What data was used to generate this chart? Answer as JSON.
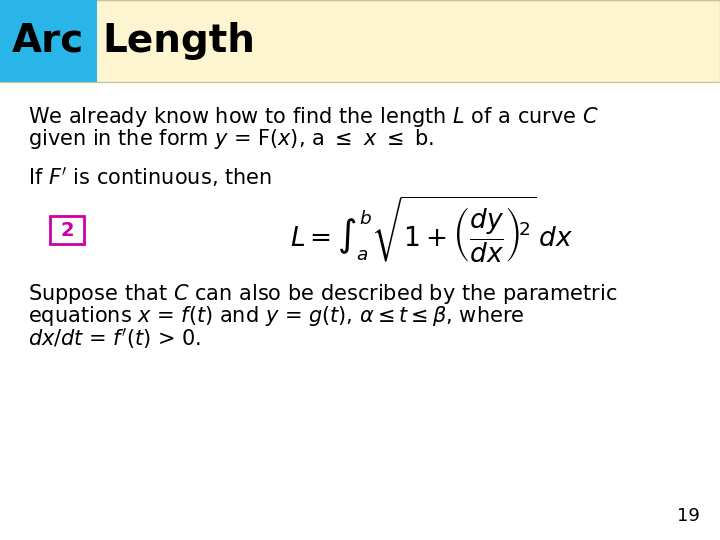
{
  "title_arc": "Arc",
  "title_rest": "Length",
  "title_bg_color": "#fdf5d0",
  "title_cyan_color": "#29b5e8",
  "title_border_color": "#c8c8a0",
  "title_fontsize": 28,
  "body_bg_color": "#ffffff",
  "text_color": "#000000",
  "label2_color": "#cc00aa",
  "formula_label": "2",
  "page_number": "19",
  "body_fontsize": 15
}
